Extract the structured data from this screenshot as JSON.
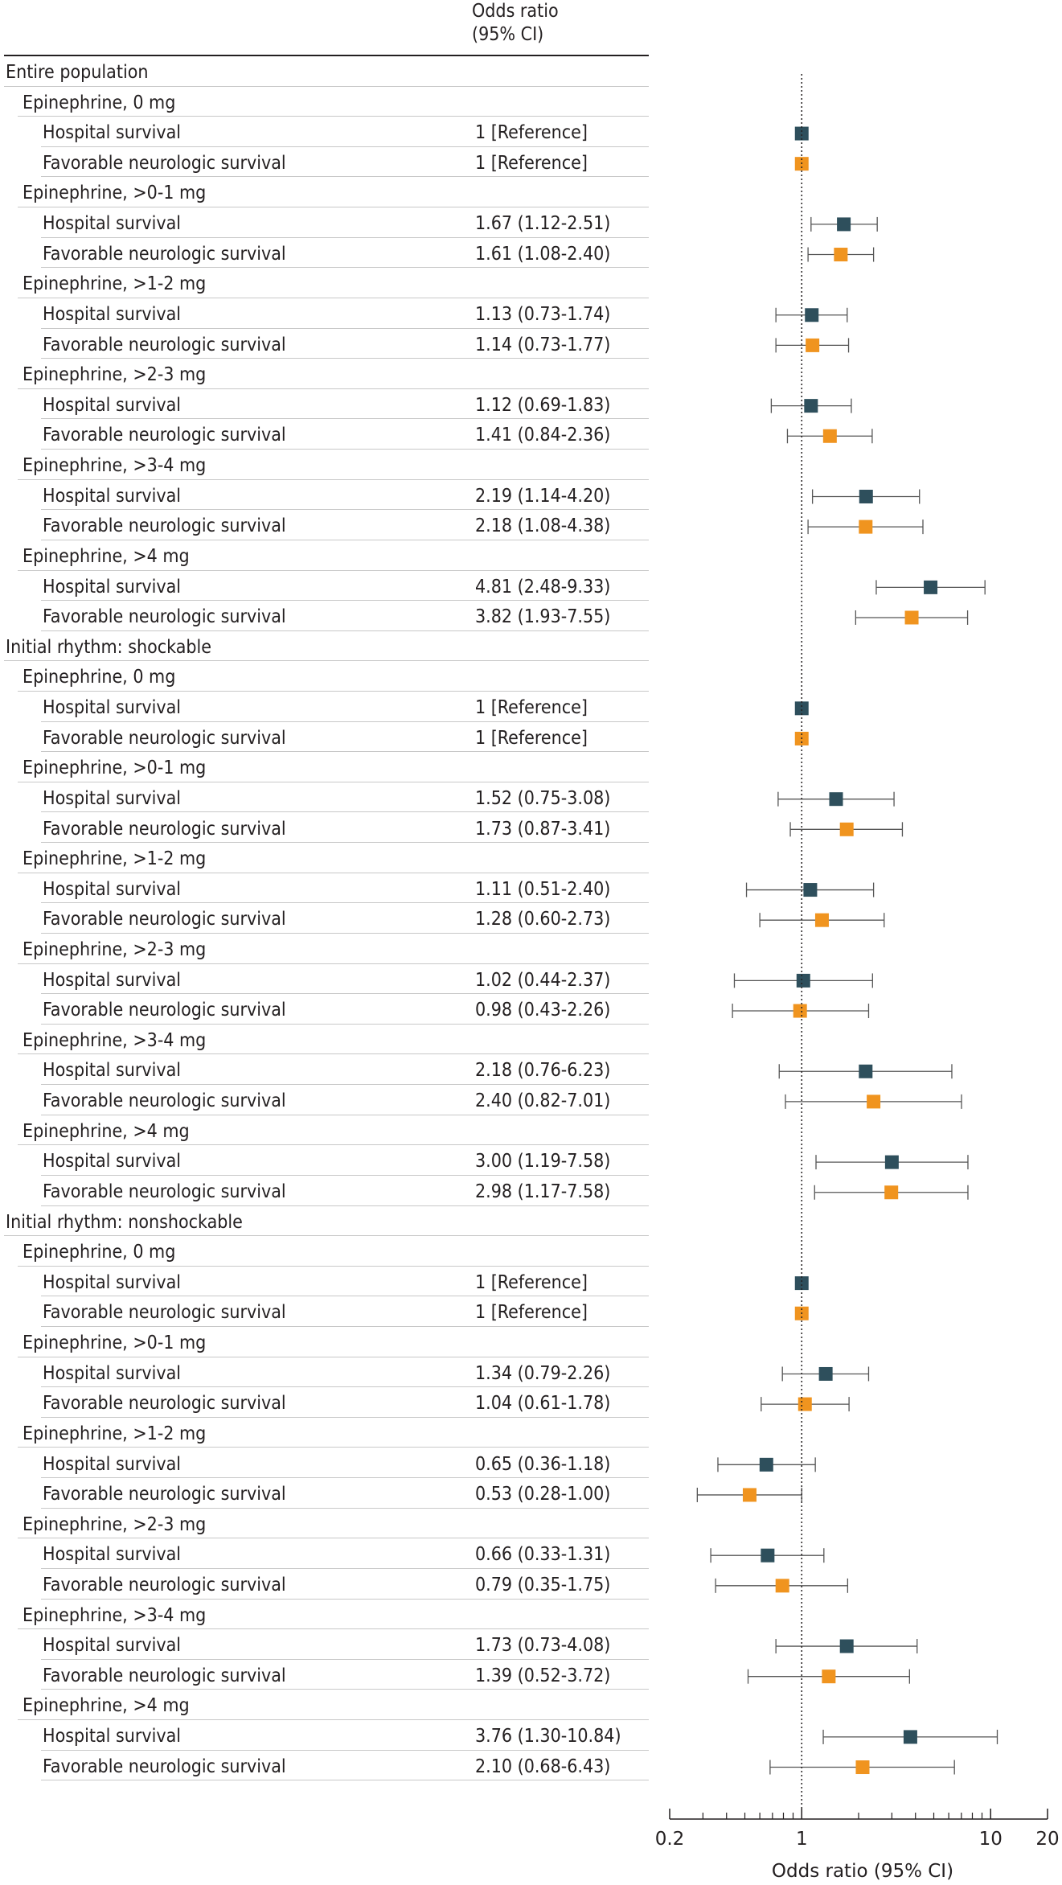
{
  "header": {
    "line1": "Odds ratio",
    "line2": "(95% CI)"
  },
  "colors": {
    "hospital": "#2e4f5c",
    "neuro": "#f0941f",
    "axis": "#231f20",
    "ci": "#555555"
  },
  "chart_data": {
    "type": "forest",
    "x_scale": "log",
    "xlim": [
      0.2,
      20
    ],
    "xticks": [
      0.2,
      1,
      10,
      20
    ],
    "xlabel": "Odds ratio (95% CI)",
    "reference_line": 1,
    "rows": [
      {
        "level": 0,
        "label": "Entire population"
      },
      {
        "level": 1,
        "label": "Epinephrine, 0 mg"
      },
      {
        "level": 2,
        "label": "Hospital survival",
        "text": "1 [Reference]",
        "or": 1,
        "series": "hospital"
      },
      {
        "level": 2,
        "label": "Favorable neurologic survival",
        "text": "1 [Reference]",
        "or": 1,
        "series": "neuro"
      },
      {
        "level": 1,
        "label": "Epinephrine, >0-1 mg"
      },
      {
        "level": 2,
        "label": "Hospital survival",
        "text": "1.67 (1.12-2.51)",
        "or": 1.67,
        "lo": 1.12,
        "hi": 2.51,
        "series": "hospital"
      },
      {
        "level": 2,
        "label": "Favorable neurologic survival",
        "text": "1.61 (1.08-2.40)",
        "or": 1.61,
        "lo": 1.08,
        "hi": 2.4,
        "series": "neuro"
      },
      {
        "level": 1,
        "label": "Epinephrine, >1-2 mg"
      },
      {
        "level": 2,
        "label": "Hospital survival",
        "text": "1.13 (0.73-1.74)",
        "or": 1.13,
        "lo": 0.73,
        "hi": 1.74,
        "series": "hospital"
      },
      {
        "level": 2,
        "label": "Favorable neurologic survival",
        "text": "1.14 (0.73-1.77)",
        "or": 1.14,
        "lo": 0.73,
        "hi": 1.77,
        "series": "neuro"
      },
      {
        "level": 1,
        "label": "Epinephrine, >2-3 mg"
      },
      {
        "level": 2,
        "label": "Hospital survival",
        "text": "1.12 (0.69-1.83)",
        "or": 1.12,
        "lo": 0.69,
        "hi": 1.83,
        "series": "hospital"
      },
      {
        "level": 2,
        "label": "Favorable neurologic survival",
        "text": "1.41 (0.84-2.36)",
        "or": 1.41,
        "lo": 0.84,
        "hi": 2.36,
        "series": "neuro"
      },
      {
        "level": 1,
        "label": "Epinephrine, >3-4 mg"
      },
      {
        "level": 2,
        "label": "Hospital survival",
        "text": "2.19 (1.14-4.20)",
        "or": 2.19,
        "lo": 1.14,
        "hi": 4.2,
        "series": "hospital"
      },
      {
        "level": 2,
        "label": "Favorable neurologic survival",
        "text": "2.18 (1.08-4.38)",
        "or": 2.18,
        "lo": 1.08,
        "hi": 4.38,
        "series": "neuro"
      },
      {
        "level": 1,
        "label": "Epinephrine, >4 mg"
      },
      {
        "level": 2,
        "label": "Hospital survival",
        "text": "4.81 (2.48-9.33)",
        "or": 4.81,
        "lo": 2.48,
        "hi": 9.33,
        "series": "hospital"
      },
      {
        "level": 2,
        "label": "Favorable neurologic survival",
        "text": "3.82 (1.93-7.55)",
        "or": 3.82,
        "lo": 1.93,
        "hi": 7.55,
        "series": "neuro"
      },
      {
        "level": 0,
        "label": "Initial rhythm: shockable"
      },
      {
        "level": 1,
        "label": "Epinephrine, 0 mg"
      },
      {
        "level": 2,
        "label": "Hospital survival",
        "text": "1 [Reference]",
        "or": 1,
        "series": "hospital"
      },
      {
        "level": 2,
        "label": "Favorable neurologic survival",
        "text": "1 [Reference]",
        "or": 1,
        "series": "neuro"
      },
      {
        "level": 1,
        "label": "Epinephrine, >0-1 mg"
      },
      {
        "level": 2,
        "label": "Hospital survival",
        "text": "1.52 (0.75-3.08)",
        "or": 1.52,
        "lo": 0.75,
        "hi": 3.08,
        "series": "hospital"
      },
      {
        "level": 2,
        "label": "Favorable neurologic survival",
        "text": "1.73 (0.87-3.41)",
        "or": 1.73,
        "lo": 0.87,
        "hi": 3.41,
        "series": "neuro"
      },
      {
        "level": 1,
        "label": "Epinephrine, >1-2 mg"
      },
      {
        "level": 2,
        "label": "Hospital survival",
        "text": "1.11 (0.51-2.40)",
        "or": 1.11,
        "lo": 0.51,
        "hi": 2.4,
        "series": "hospital"
      },
      {
        "level": 2,
        "label": "Favorable neurologic survival",
        "text": "1.28 (0.60-2.73)",
        "or": 1.28,
        "lo": 0.6,
        "hi": 2.73,
        "series": "neuro"
      },
      {
        "level": 1,
        "label": "Epinephrine, >2-3 mg"
      },
      {
        "level": 2,
        "label": "Hospital survival",
        "text": "1.02 (0.44-2.37)",
        "or": 1.02,
        "lo": 0.44,
        "hi": 2.37,
        "series": "hospital"
      },
      {
        "level": 2,
        "label": "Favorable neurologic survival",
        "text": "0.98 (0.43-2.26)",
        "or": 0.98,
        "lo": 0.43,
        "hi": 2.26,
        "series": "neuro"
      },
      {
        "level": 1,
        "label": "Epinephrine, >3-4 mg"
      },
      {
        "level": 2,
        "label": "Hospital survival",
        "text": "2.18 (0.76-6.23)",
        "or": 2.18,
        "lo": 0.76,
        "hi": 6.23,
        "series": "hospital"
      },
      {
        "level": 2,
        "label": "Favorable neurologic survival",
        "text": "2.40 (0.82-7.01)",
        "or": 2.4,
        "lo": 0.82,
        "hi": 7.01,
        "series": "neuro"
      },
      {
        "level": 1,
        "label": "Epinephrine, >4 mg"
      },
      {
        "level": 2,
        "label": "Hospital survival",
        "text": "3.00 (1.19-7.58)",
        "or": 3.0,
        "lo": 1.19,
        "hi": 7.58,
        "series": "hospital"
      },
      {
        "level": 2,
        "label": "Favorable neurologic survival",
        "text": "2.98 (1.17-7.58)",
        "or": 2.98,
        "lo": 1.17,
        "hi": 7.58,
        "series": "neuro"
      },
      {
        "level": 0,
        "label": "Initial rhythm: nonshockable"
      },
      {
        "level": 1,
        "label": "Epinephrine, 0 mg"
      },
      {
        "level": 2,
        "label": "Hospital survival",
        "text": "1 [Reference]",
        "or": 1,
        "series": "hospital"
      },
      {
        "level": 2,
        "label": "Favorable neurologic survival",
        "text": "1 [Reference]",
        "or": 1,
        "series": "neuro"
      },
      {
        "level": 1,
        "label": "Epinephrine, >0-1 mg"
      },
      {
        "level": 2,
        "label": "Hospital survival",
        "text": "1.34 (0.79-2.26)",
        "or": 1.34,
        "lo": 0.79,
        "hi": 2.26,
        "series": "hospital"
      },
      {
        "level": 2,
        "label": "Favorable neurologic survival",
        "text": "1.04 (0.61-1.78)",
        "or": 1.04,
        "lo": 0.61,
        "hi": 1.78,
        "series": "neuro"
      },
      {
        "level": 1,
        "label": "Epinephrine, >1-2 mg"
      },
      {
        "level": 2,
        "label": "Hospital survival",
        "text": "0.65 (0.36-1.18)",
        "or": 0.65,
        "lo": 0.36,
        "hi": 1.18,
        "series": "hospital"
      },
      {
        "level": 2,
        "label": "Favorable neurologic survival",
        "text": "0.53 (0.28-1.00)",
        "or": 0.53,
        "lo": 0.28,
        "hi": 1.0,
        "series": "neuro"
      },
      {
        "level": 1,
        "label": "Epinephrine, >2-3 mg"
      },
      {
        "level": 2,
        "label": "Hospital survival",
        "text": "0.66 (0.33-1.31)",
        "or": 0.66,
        "lo": 0.33,
        "hi": 1.31,
        "series": "hospital"
      },
      {
        "level": 2,
        "label": "Favorable neurologic survival",
        "text": "0.79 (0.35-1.75)",
        "or": 0.79,
        "lo": 0.35,
        "hi": 1.75,
        "series": "neuro"
      },
      {
        "level": 1,
        "label": "Epinephrine, >3-4 mg"
      },
      {
        "level": 2,
        "label": "Hospital survival",
        "text": "1.73 (0.73-4.08)",
        "or": 1.73,
        "lo": 0.73,
        "hi": 4.08,
        "series": "hospital"
      },
      {
        "level": 2,
        "label": "Favorable neurologic survival",
        "text": "1.39 (0.52-3.72)",
        "or": 1.39,
        "lo": 0.52,
        "hi": 3.72,
        "series": "neuro"
      },
      {
        "level": 1,
        "label": "Epinephrine, >4 mg"
      },
      {
        "level": 2,
        "label": "Hospital survival",
        "text": "3.76 (1.30-10.84)",
        "or": 3.76,
        "lo": 1.3,
        "hi": 10.84,
        "series": "hospital"
      },
      {
        "level": 2,
        "label": "Favorable neurologic survival",
        "text": "2.10 (0.68-6.43)",
        "or": 2.1,
        "lo": 0.68,
        "hi": 6.43,
        "series": "neuro"
      }
    ]
  }
}
